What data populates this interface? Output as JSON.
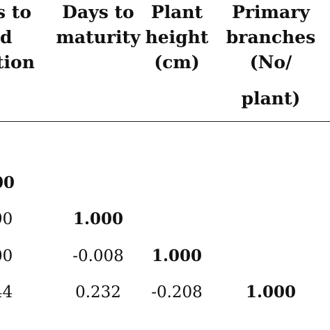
{
  "headers": {
    "partial_col": {
      "line1": "s to",
      "line2": "d",
      "line3": "tion"
    },
    "days_to_maturity": {
      "line1": "Days to",
      "line2": "maturity"
    },
    "plant_height": {
      "line1": "Plant",
      "line2": "height",
      "line3": "(cm)"
    },
    "primary_branches": {
      "line1": "Primary",
      "line2": "branches",
      "line3": "(No/",
      "line4": "plant)"
    }
  },
  "rows": [
    {
      "partial": "00"
    },
    {
      "partial": "90",
      "days_to_maturity": "1.000"
    },
    {
      "partial": "00",
      "days_to_maturity": "-0.008",
      "plant_height": "1.000"
    },
    {
      "partial": "44",
      "days_to_maturity": "0.232",
      "plant_height": "-0.208",
      "primary_branches": "1.000"
    }
  ]
}
